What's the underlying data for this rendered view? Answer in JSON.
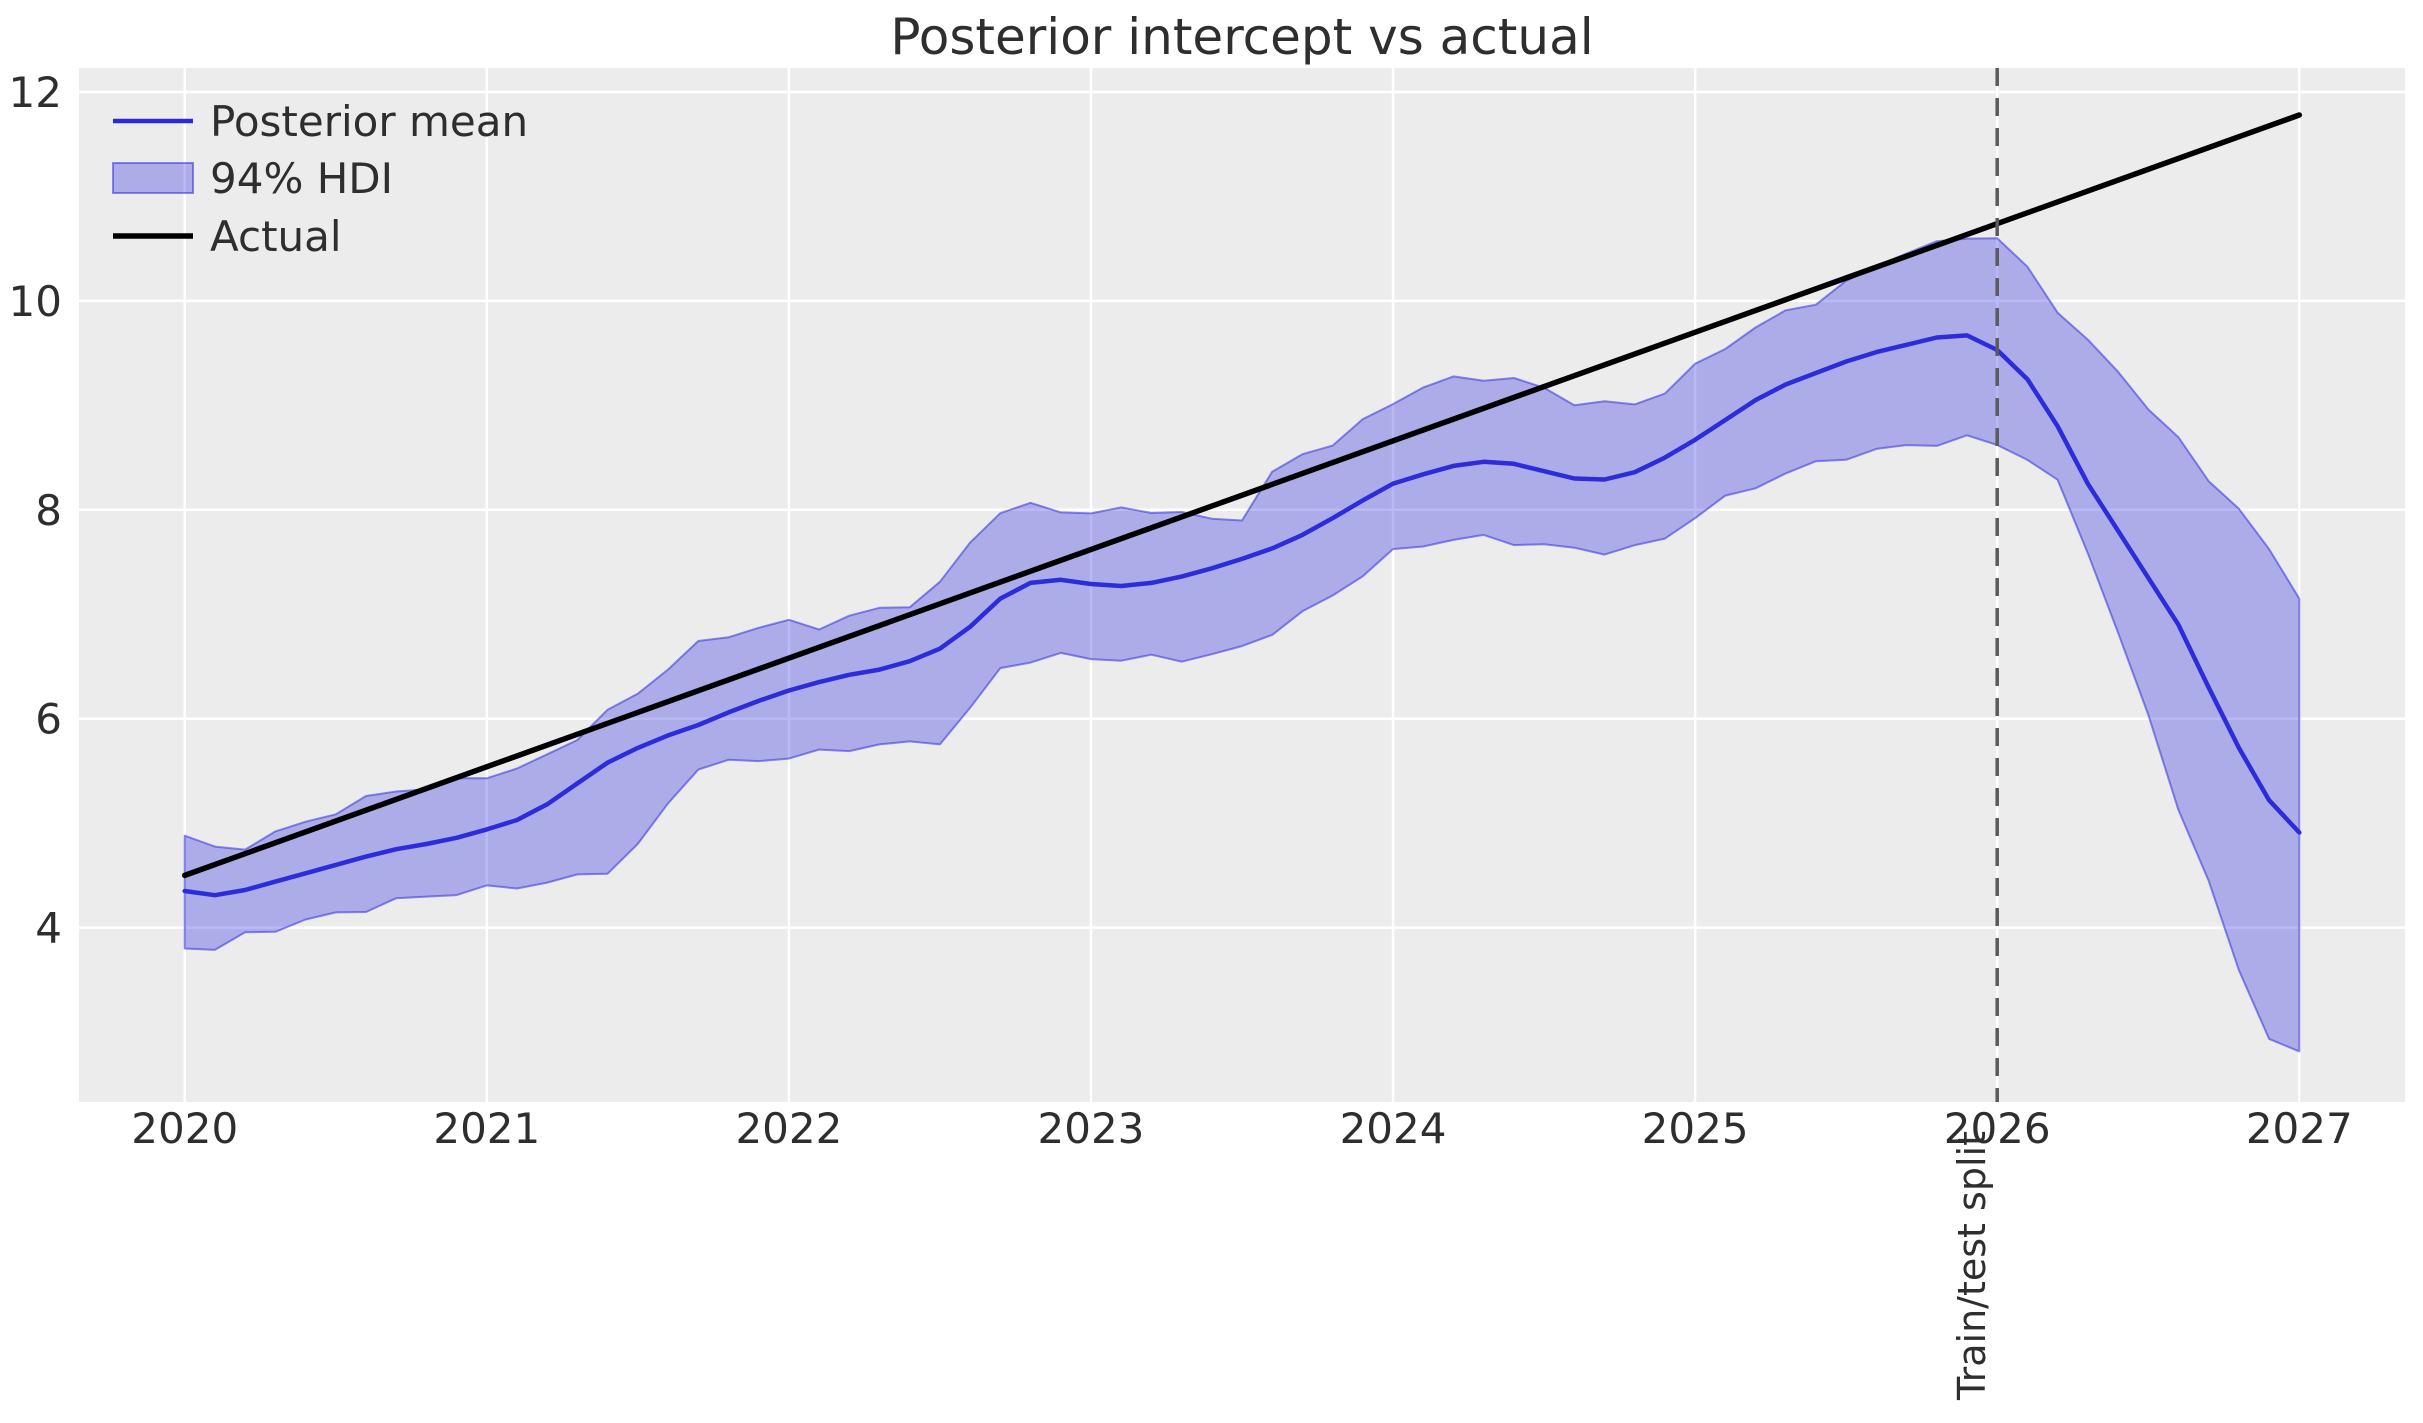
{
  "figure": {
    "title": "Posterior intercept vs actual",
    "background": "#ffffff",
    "plot_background": "#ececec",
    "grid_color": "#ffffff",
    "text_color": "#2e2e2e"
  },
  "legend": {
    "items": [
      {
        "label": "Posterior mean",
        "type": "line",
        "color": "#2a2ad6"
      },
      {
        "label": "94% HDI",
        "type": "patch",
        "fill": "rgba(50,50,225,0.34)",
        "edge": "rgba(50,50,225,0.55)"
      },
      {
        "label": "Actual",
        "type": "line",
        "color": "#000000"
      }
    ]
  },
  "annotations": {
    "split_label": "Train/test split",
    "split_x": 2026
  },
  "chart_data": {
    "type": "line",
    "title": "Posterior intercept vs actual",
    "xlabel": "",
    "ylabel": "",
    "xlim": [
      2019.65,
      2027.35
    ],
    "ylim": [
      2.33,
      12.23
    ],
    "xticks": [
      2020,
      2021,
      2022,
      2023,
      2024,
      2025,
      2026,
      2027
    ],
    "yticks": [
      4,
      6,
      8,
      10,
      12
    ],
    "grid": true,
    "legend_position": "upper left",
    "x": [
      2020.0,
      2020.1,
      2020.2,
      2020.3,
      2020.4,
      2020.5,
      2020.6,
      2020.7,
      2020.8,
      2020.9,
      2021.0,
      2021.1,
      2021.2,
      2021.3,
      2021.4,
      2021.5,
      2021.6,
      2021.7,
      2021.8,
      2021.9,
      2022.0,
      2022.1,
      2022.2,
      2022.3,
      2022.4,
      2022.5,
      2022.6,
      2022.7,
      2022.8,
      2022.9,
      2023.0,
      2023.1,
      2023.2,
      2023.3,
      2023.4,
      2023.5,
      2023.6,
      2023.7,
      2023.8,
      2023.9,
      2024.0,
      2024.1,
      2024.2,
      2024.3,
      2024.4,
      2024.5,
      2024.6,
      2024.7,
      2024.8,
      2024.9,
      2025.0,
      2025.1,
      2025.2,
      2025.3,
      2025.4,
      2025.5,
      2025.6,
      2025.7,
      2025.8,
      2025.9,
      2026.0,
      2026.1,
      2026.2,
      2026.3,
      2026.4,
      2026.5,
      2026.6,
      2026.7,
      2026.8,
      2026.9,
      2027.0
    ],
    "series": [
      {
        "name": "Posterior mean",
        "type": "line",
        "color": "#2a2ad6",
        "width": 4.5,
        "y": [
          4.35,
          4.31,
          4.36,
          4.44,
          4.52,
          4.6,
          4.68,
          4.75,
          4.8,
          4.86,
          4.94,
          5.03,
          5.18,
          5.38,
          5.58,
          5.72,
          5.84,
          5.94,
          6.06,
          6.17,
          6.27,
          6.35,
          6.42,
          6.47,
          6.55,
          6.67,
          6.88,
          7.15,
          7.3,
          7.33,
          7.29,
          7.27,
          7.3,
          7.36,
          7.44,
          7.53,
          7.63,
          7.76,
          7.92,
          8.09,
          8.25,
          8.34,
          8.42,
          8.46,
          8.44,
          8.37,
          8.3,
          8.29,
          8.36,
          8.5,
          8.67,
          8.86,
          9.05,
          9.2,
          9.31,
          9.42,
          9.51,
          9.58,
          9.65,
          9.67,
          9.53,
          9.25,
          8.8,
          8.25,
          7.8,
          7.35,
          6.9,
          6.3,
          5.72,
          5.22,
          4.91
        ]
      },
      {
        "name": "94% HDI",
        "type": "band",
        "fill": "rgba(50,50,225,0.34)",
        "edge": "rgba(50,50,225,0.55)",
        "edge_width": 2,
        "upper": [
          4.88,
          4.76,
          4.8,
          4.92,
          5.02,
          5.12,
          5.22,
          5.3,
          5.32,
          5.38,
          5.45,
          5.52,
          5.65,
          5.85,
          6.08,
          6.25,
          6.5,
          6.7,
          6.78,
          6.86,
          6.9,
          6.88,
          6.98,
          7.06,
          7.12,
          7.3,
          7.7,
          7.99,
          8.02,
          7.98,
          7.95,
          7.98,
          8.0,
          7.97,
          7.92,
          7.95,
          8.35,
          8.55,
          8.63,
          8.82,
          9.02,
          9.15,
          9.24,
          9.27,
          9.25,
          9.18,
          9.05,
          9.02,
          9.03,
          9.12,
          9.35,
          9.55,
          9.72,
          9.88,
          10.0,
          10.18,
          10.35,
          10.5,
          10.55,
          10.62,
          10.6,
          10.28,
          9.9,
          9.6,
          9.3,
          9.0,
          8.68,
          8.3,
          8.05,
          7.6,
          7.15
        ],
        "lower": [
          3.8,
          3.78,
          3.92,
          4.0,
          4.08,
          4.15,
          4.2,
          4.26,
          4.3,
          4.32,
          4.35,
          4.38,
          4.42,
          4.48,
          4.56,
          4.8,
          5.2,
          5.56,
          5.58,
          5.6,
          5.62,
          5.65,
          5.7,
          5.74,
          5.76,
          5.8,
          6.1,
          6.5,
          6.58,
          6.6,
          6.58,
          6.55,
          6.56,
          6.56,
          6.6,
          6.68,
          6.85,
          7.02,
          7.2,
          7.4,
          7.59,
          7.66,
          7.7,
          7.71,
          7.68,
          7.65,
          7.63,
          7.62,
          7.65,
          7.75,
          7.95,
          8.1,
          8.22,
          8.33,
          8.42,
          8.5,
          8.56,
          8.62,
          8.66,
          8.7,
          8.65,
          8.5,
          8.25,
          7.6,
          6.8,
          6.0,
          5.15,
          4.45,
          3.6,
          2.98,
          2.8
        ]
      },
      {
        "name": "Actual",
        "type": "line",
        "color": "#000000",
        "width": 5.5,
        "x": [
          2020,
          2027
        ],
        "y": [
          4.5,
          11.78
        ]
      }
    ],
    "vline": {
      "x": 2026,
      "label": "Train/test split",
      "color": "#5a5a5a",
      "width": 3.5,
      "dash": [
        18,
        12
      ]
    }
  }
}
